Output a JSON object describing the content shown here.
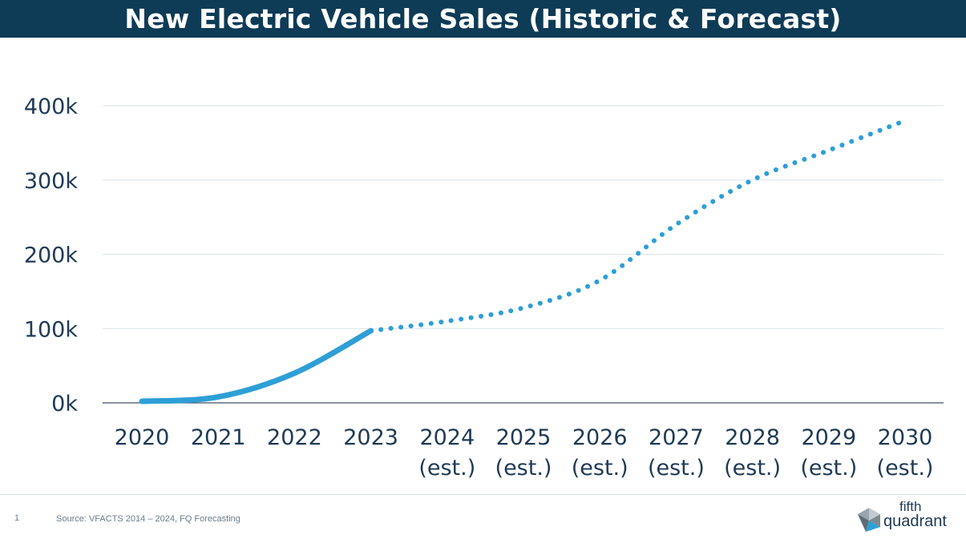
{
  "title": "New Electric Vehicle Sales (Historic & Forecast)",
  "footer": {
    "page_number": "1",
    "source": "Source: VFACTS 2014 – 2024, FQ Forecasting"
  },
  "logo": {
    "line1": "fifth",
    "line2": "quadrant"
  },
  "colors": {
    "title_bar": "#0e3b56",
    "series": "#2e9fd6",
    "grid": "#d9e2ea",
    "text": "#1f3a55"
  },
  "chart_data": {
    "type": "line",
    "title": "New Electric Vehicle Sales (Historic & Forecast)",
    "xlabel": "",
    "ylabel": "",
    "categories": [
      "2020",
      "2021",
      "2022",
      "2023",
      "2024\n(est.)",
      "2025\n(est.)",
      "2026\n(est.)",
      "2027\n(est.)",
      "2028\n(est.)",
      "2029\n(est.)",
      "2030\n(est.)"
    ],
    "y_ticks": [
      {
        "value": 0,
        "label": "0k"
      },
      {
        "value": 100000,
        "label": "100k"
      },
      {
        "value": 200000,
        "label": "200k"
      },
      {
        "value": 300000,
        "label": "300k"
      },
      {
        "value": 400000,
        "label": "400k"
      }
    ],
    "ylim": [
      0,
      400000
    ],
    "grid": true,
    "legend": "none",
    "series": [
      {
        "values": [
          2000,
          8000,
          40000,
          97000,
          110000,
          128000,
          165000,
          240000,
          300000,
          340000,
          380000
        ],
        "historic_count": 4,
        "forecast_style": "dotted"
      }
    ]
  }
}
